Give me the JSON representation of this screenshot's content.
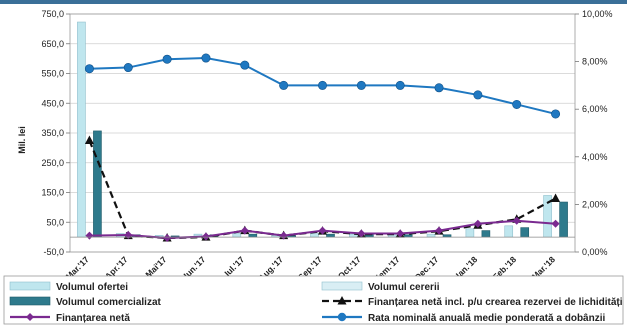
{
  "chart_data": {
    "type": "bar",
    "title": "",
    "ylabel": "Mil. lei",
    "y2label": "",
    "ylim": [
      -50,
      750
    ],
    "y_ticks": [
      "750,0",
      "650,0",
      "550,0",
      "450,0",
      "350,0",
      "250,0",
      "150,0",
      "50,0",
      "-50,0"
    ],
    "y2lim": [
      0,
      10
    ],
    "y2_ticks": [
      "10,00%",
      "8,00%",
      "6,00%",
      "4,00%",
      "2,00%",
      "0,00%"
    ],
    "grid": "horizontal",
    "legend_position": "bottom",
    "categories": [
      "Mar.'17",
      "Apr.'17",
      "Mai'17",
      "Iun.'17",
      "Iul.'17",
      "Aug.'17",
      "Sep.'17",
      "Oct.'17",
      "Noiem.'17",
      "Dec.'17",
      "Ian.'18",
      "Feb.'18",
      "Mar.'18"
    ],
    "series": [
      {
        "name": "Volumul ofertei",
        "type": "bar",
        "axis": "left",
        "color": "#bfe6ee",
        "values": [
          723,
          12,
          6,
          10,
          12,
          6,
          12,
          10,
          10,
          10,
          28,
          38,
          140
        ]
      },
      {
        "name": "Volumul cererii",
        "type": "bar",
        "axis": "left",
        "color": "#d9eef4",
        "values": [
          0,
          0,
          0,
          0,
          0,
          0,
          0,
          0,
          0,
          0,
          0,
          0,
          0
        ]
      },
      {
        "name": "Volumul comercializat",
        "type": "bar",
        "axis": "left",
        "color": "#2e7a8c",
        "values": [
          357,
          8,
          4,
          8,
          10,
          5,
          10,
          8,
          8,
          8,
          22,
          32,
          118
        ]
      },
      {
        "name": "Finanțarea netă incl. p/u crearea rezervei de lichidități",
        "type": "line",
        "axis": "left",
        "color": "#111111",
        "dash": true,
        "marker": "triangle",
        "values": [
          325,
          5,
          -3,
          0,
          22,
          5,
          20,
          10,
          10,
          20,
          40,
          60,
          130
        ]
      },
      {
        "name": "Finanțarea netă",
        "type": "line",
        "axis": "left",
        "color": "#7a2a90",
        "marker": "diamond",
        "values": [
          5,
          7,
          -3,
          2,
          22,
          5,
          22,
          12,
          12,
          22,
          45,
          55,
          45
        ]
      },
      {
        "name": "Rata nominală anuală medie ponderată a dobânzii",
        "type": "line",
        "axis": "right",
        "color": "#1f78c1",
        "marker": "circle",
        "values": [
          7.7,
          7.75,
          8.1,
          8.15,
          7.85,
          7.0,
          7.0,
          7.0,
          7.0,
          6.9,
          6.6,
          6.2,
          5.8
        ]
      }
    ]
  }
}
